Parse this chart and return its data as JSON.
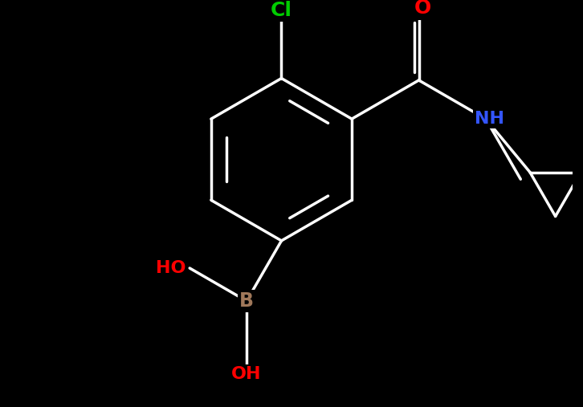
{
  "background": "#000000",
  "bond_color": "#ffffff",
  "lw": 2.5,
  "font_size": 16,
  "colors": {
    "Cl": "#00cc00",
    "O": "#ff0000",
    "N": "#3355ff",
    "B": "#a0785a",
    "HO": "#ff0000",
    "OH": "#ff0000",
    "NH": "#3355ff"
  },
  "fig_w": 7.26,
  "fig_h": 5.07,
  "dpi": 100
}
